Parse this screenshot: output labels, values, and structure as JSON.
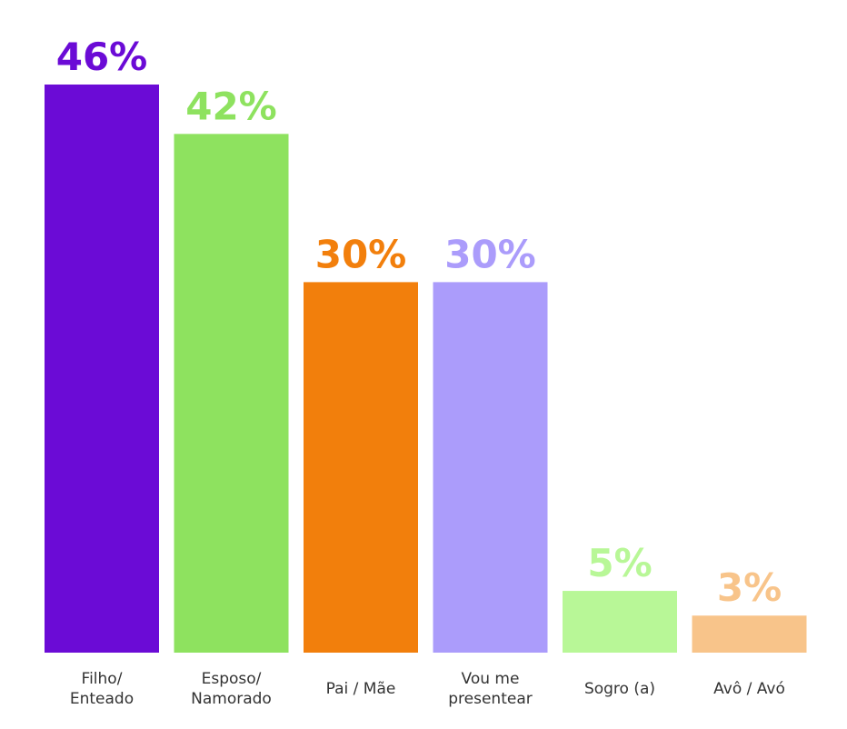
{
  "chart_data": {
    "type": "bar",
    "categories": [
      [
        "Filho/",
        "Enteado"
      ],
      [
        "Esposo/",
        "Namorado"
      ],
      [
        "Pai / Mãe"
      ],
      [
        "Vou me",
        "presentear"
      ],
      [
        "Sogro (a)"
      ],
      [
        "Avô / Avó"
      ]
    ],
    "values": [
      46,
      42,
      30,
      30,
      5,
      3
    ],
    "value_labels": [
      "46%",
      "42%",
      "30%",
      "30%",
      "5%",
      "3%"
    ],
    "colors": [
      "#6b0bd6",
      "#8ee25f",
      "#f27f0c",
      "#ab9cfb",
      "#b8f797",
      "#f8c48a"
    ],
    "label_colors": [
      "#6b0bd6",
      "#8ee25f",
      "#f27f0c",
      "#ab9cfb",
      "#b8f797",
      "#f8c48a"
    ],
    "title": "",
    "xlabel": "",
    "ylabel": "",
    "ylim": [
      0,
      46
    ],
    "grid": false,
    "legend": "none"
  }
}
